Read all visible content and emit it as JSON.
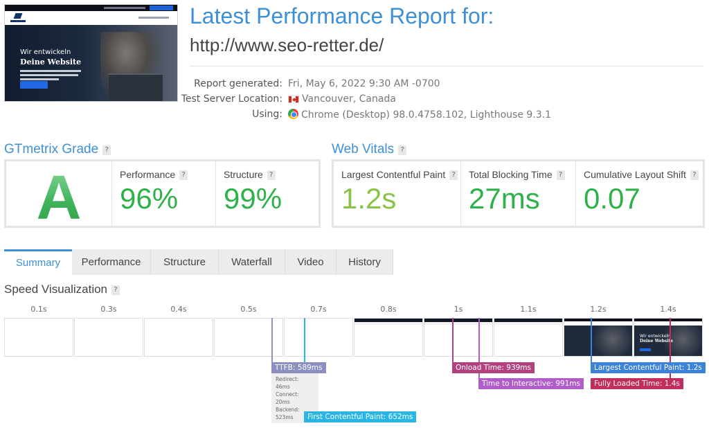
{
  "thumbnail": {
    "hero_line1": "Wir entwickeln",
    "hero_line2": "Deine Website"
  },
  "header": {
    "title": "Latest Performance Report for:",
    "url": "http://www.seo-retter.de/"
  },
  "meta": {
    "report_generated_label": "Report generated:",
    "report_generated_value": "Fri, May 6, 2022 9:30 AM -0700",
    "server_label": "Test Server Location:",
    "server_value": "Vancouver, Canada",
    "using_label": "Using:",
    "using_value": "Chrome (Desktop) 98.0.4758.102, Lighthouse 9.3.1"
  },
  "grade": {
    "title": "GTmetrix Grade",
    "help": "?",
    "letter": "A",
    "performance_label": "Performance",
    "performance_value": "96%",
    "structure_label": "Structure",
    "structure_value": "99%"
  },
  "vitals": {
    "title": "Web Vitals",
    "help": "?",
    "lcp_label": "Largest Contentful Paint",
    "lcp_value": "1.2s",
    "tbt_label": "Total Blocking Time",
    "tbt_value": "27ms",
    "cls_label": "Cumulative Layout Shift",
    "cls_value": "0.07"
  },
  "tabs": {
    "summary": "Summary",
    "performance": "Performance",
    "structure": "Structure",
    "waterfall": "Waterfall",
    "video": "Video",
    "history": "History"
  },
  "speed": {
    "title": "Speed Visualization",
    "help": "?",
    "times": [
      "0.1s",
      "0.3s",
      "0.4s",
      "0.5s",
      "0.7s",
      "0.8s",
      "1s",
      "1.1s",
      "1.2s",
      "1.4s"
    ],
    "ttfb": "TTFB: 589ms",
    "redirect": "Redirect: 46ms",
    "connect": "Connect: 20ms",
    "backend": "Backend: 523ms",
    "fcp": "First Contentful Paint: 652ms",
    "onload": "Onload Time: 939ms",
    "tti": "Time to Interactive: 991ms",
    "lcp": "Largest Contentful Paint: 1.2s",
    "fully_loaded": "Fully Loaded Time: 1.4s"
  },
  "colors": {
    "accent": "#3d8fd6",
    "grade_green": "#2fb14a",
    "ttfb": "#8c8fbf",
    "fcp": "#29b6e6",
    "onload": "#b2427e",
    "tti": "#b05cc9",
    "lcp": "#3b82d8",
    "fully_loaded": "#c22d5c"
  }
}
